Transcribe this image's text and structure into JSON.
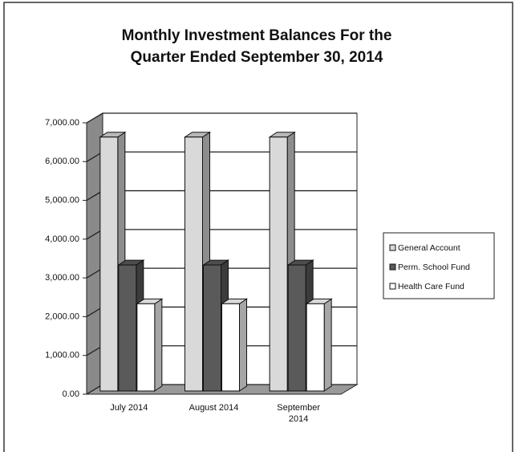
{
  "chart_data": {
    "type": "bar3d",
    "title": "Monthly Investment Balances For the Quarter Ended September 30, 2014",
    "categories": [
      "July 2014",
      "August 2014",
      "September 2014"
    ],
    "series": [
      {
        "name": "General Account",
        "color": "#d9d9d9",
        "values": [
          6550,
          6550,
          6550
        ]
      },
      {
        "name": "Perm. School Fund",
        "color": "#5a5a5a",
        "values": [
          3250,
          3250,
          3250
        ]
      },
      {
        "name": "Health Care Fund",
        "color": "#ffffff",
        "values": [
          2250,
          2250,
          2250
        ]
      }
    ],
    "ylim": [
      0,
      7000
    ],
    "yticks": [
      {
        "value": 0,
        "label": "0.00"
      },
      {
        "value": 1000,
        "label": "1,000.00"
      },
      {
        "value": 2000,
        "label": "2,000.00"
      },
      {
        "value": 3000,
        "label": "3,000.00"
      },
      {
        "value": 4000,
        "label": "4,000.00"
      },
      {
        "value": 5000,
        "label": "5,000.00"
      },
      {
        "value": 6000,
        "label": "6,000.00"
      },
      {
        "value": 7000,
        "label": "7,000.00"
      }
    ],
    "grid": true,
    "legend": "right"
  }
}
